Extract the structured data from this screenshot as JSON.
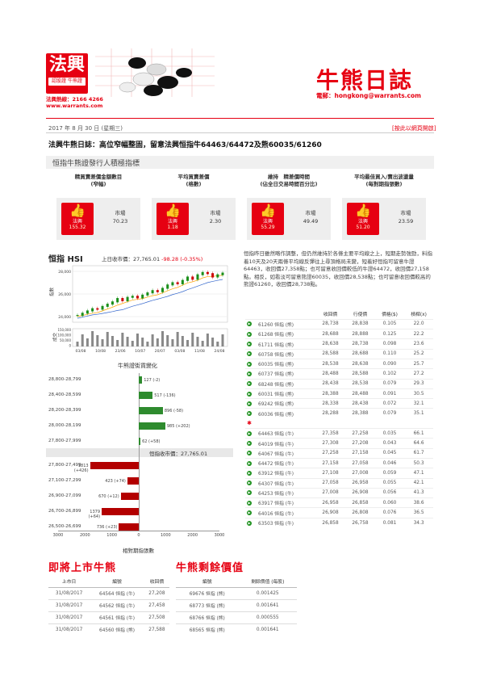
{
  "brand": {
    "logo_big": "法興",
    "logo_small": "認股證 牛熊證",
    "hotline": "法興熱線：2166 4266",
    "website": "www.warrants.com"
  },
  "header": {
    "title": "牛熊日誌",
    "email": "電郵：hongkong@warrants.com"
  },
  "date": "2017 年 8 月 30 日 (星期三)",
  "web_link": "[按此以網頁開啟]",
  "headline": "法興牛熊日誌：高位窄幅整固，留意法興恒指牛64463/64472及熊60035/61260",
  "section_title": "恒指牛熊證發行人積極指標",
  "cards": [
    {
      "title1": "精買賣差價金額數目",
      "title2": "(窄幅)",
      "issuer_label": "法興",
      "issuer_value": "155.32",
      "market_label": "市場",
      "market_value": "70.23"
    },
    {
      "title1": "平均買賣差價",
      "title2": "(格數)",
      "issuer_label": "法興",
      "issuer_value": "1.18",
      "market_label": "市場",
      "market_value": "2.30"
    },
    {
      "title1": "維持　精差價時間",
      "title2": "(佔全日交易時間百分比)",
      "issuer_label": "法興",
      "issuer_value": "55.29",
      "market_label": "市場",
      "market_value": "49.49"
    },
    {
      "title1": "平均最佳買入/賣出波盪量",
      "title2": "(每對期指張數)",
      "issuer_label": "法興",
      "issuer_value": "51.20",
      "market_label": "市場",
      "market_value": "23.59"
    }
  ],
  "hsi": {
    "label": "恒指 HSI",
    "close_text": "上日收市價：27,765.01",
    "change": "-98.28 (-0.35%)"
  },
  "commentary": "恒指昨日雖然略作調整，但仍然維持於各條主要平均線之上，短期走勢強勁，料指着10天及20天兩條平均線反彈往上尋頂格局未變，短着好恒指可留意牛證64463，收回價27,358點；也可留意收回價較低的牛證64472，收回價27,158點。相反，如看淡可留意熊證60035，收回價28,538點；也可留意收回價較高的熊證61260，收回價28,738點。",
  "cbbc_table": {
    "headers": [
      "",
      "",
      "收回價",
      "行使價",
      "價格($)",
      "槓桿(x)"
    ],
    "bull_icon": "star-icon",
    "bear_rows": [
      [
        "61260 恒指 (熊)",
        "28,738",
        "28,838",
        "0.105",
        "22.0"
      ],
      [
        "61268 恒指 (熊)",
        "28,688",
        "28,888",
        "0.125",
        "22.2"
      ],
      [
        "61711 恒指 (熊)",
        "28,638",
        "28,738",
        "0.098",
        "23.6"
      ],
      [
        "60758 恒指 (熊)",
        "28,588",
        "28,688",
        "0.110",
        "25.2"
      ],
      [
        "60035 恒指 (熊)",
        "28,538",
        "28,638",
        "0.090",
        "25.7"
      ],
      [
        "60737 恒指 (熊)",
        "28,488",
        "28,588",
        "0.102",
        "27.2"
      ],
      [
        "68248 恒指 (熊)",
        "28,438",
        "28,538",
        "0.079",
        "29.3"
      ],
      [
        "60031 恒指 (熊)",
        "28,388",
        "28,488",
        "0.091",
        "30.5"
      ],
      [
        "69242 恒指 (熊)",
        "28,338",
        "28,438",
        "0.072",
        "32.1"
      ],
      [
        "60036 恒指 (熊)",
        "28,288",
        "28,388",
        "0.079",
        "35.1"
      ]
    ],
    "bull_rows": [
      [
        "64463 恒指 (牛)",
        "27,358",
        "27,258",
        "0.035",
        "66.1"
      ],
      [
        "64019 恒指 (牛)",
        "27,308",
        "27,208",
        "0.043",
        "64.6"
      ],
      [
        "64067 恒指 (牛)",
        "27,258",
        "27,158",
        "0.045",
        "61.7"
      ],
      [
        "64472 恒指 (牛)",
        "27,158",
        "27,058",
        "0.046",
        "50.3"
      ],
      [
        "63912 恒指 (牛)",
        "27,108",
        "27,008",
        "0.059",
        "47.1"
      ],
      [
        "64307 恒指 (牛)",
        "27,058",
        "26,958",
        "0.055",
        "42.1"
      ],
      [
        "64253 恒指 (牛)",
        "27,008",
        "26,908",
        "0.056",
        "41.3"
      ],
      [
        "63917 恒指 (牛)",
        "26,958",
        "26,858",
        "0.060",
        "38.6"
      ],
      [
        "64016 恒指 (牛)",
        "26,908",
        "26,808",
        "0.076",
        "36.5"
      ],
      [
        "63503 恒指 (牛)",
        "26,858",
        "26,758",
        "0.081",
        "34.3"
      ]
    ]
  },
  "chart_data": [
    {
      "type": "line",
      "ylabel": "指數",
      "vol_label": "成交",
      "x_ticks": [
        "03/08",
        "10/08",
        "23/06",
        "10/07",
        "20/07",
        "03/08",
        "11/08",
        "24/08"
      ],
      "y_ticks": [
        "28,000",
        "26,000",
        "24,000"
      ],
      "vol_ticks": [
        "150,000",
        "100,000",
        "50,000",
        "0"
      ],
      "ylim": [
        23500,
        28500
      ],
      "values": [
        24100,
        24300,
        24500,
        24700,
        24650,
        24900,
        25100,
        25300,
        25600,
        25400,
        25700,
        25800,
        25650,
        25900,
        26100,
        26300,
        26200,
        26500,
        26800,
        27000,
        26900,
        27200,
        27500,
        27300,
        27700,
        27900,
        27800,
        27500,
        27700,
        27850
      ]
    },
    {
      "type": "bar",
      "title": "牛熊證街貨變化",
      "mid_label": "恒指收市價：27,765.01",
      "xlabel": "相對期指張數",
      "x_ticks": [
        "3000",
        "2000",
        "1000",
        "0",
        "1000",
        "2000",
        "3000"
      ],
      "xlim": [
        -3000,
        3000
      ],
      "bear_categories": [
        "28,800-28,799",
        "28,400-28,599",
        "28,200-28,399",
        "28,000-28,199",
        "27,800-27,999"
      ],
      "bear_values": [
        127,
        517,
        896,
        985,
        62
      ],
      "bear_labels": [
        "127 (-2)",
        "517 (-136)",
        "896 (-58)",
        "985 (+202)",
        "62 (+58)"
      ],
      "bull_categories": [
        "27,800-27,499",
        "27,100-27,299",
        "26,900-27,099",
        "26,700-26,899",
        "26,500-26,699"
      ],
      "bull_values": [
        1813,
        423,
        670,
        1379,
        736
      ],
      "bull_labels": [
        "1813 (+426)",
        "423 (+74)",
        "670 (+12)",
        "1379 (+64)",
        "736 (+23)"
      ]
    }
  ],
  "upcoming": {
    "title": "即將上市牛熊",
    "headers": [
      "上市日",
      "編號",
      "收回價"
    ],
    "rows": [
      [
        "31/08/2017",
        "64564 恒指 (牛)",
        "27,208"
      ],
      [
        "31/08/2017",
        "64562 恒指 (牛)",
        "27,458"
      ],
      [
        "31/08/2017",
        "64561 恒指 (牛)",
        "27,508"
      ],
      [
        "31/08/2017",
        "64560 恒指 (熊)",
        "27,588"
      ]
    ]
  },
  "residual": {
    "title": "牛熊剩餘價值",
    "headers": [
      "編號",
      "剩餘價值 (每股)"
    ],
    "rows": [
      [
        "69676 恒指 (熊)",
        "0.001425"
      ],
      [
        "68773 恒指 (熊)",
        "0.001641"
      ],
      [
        "68766 恒指 (熊)",
        "0.000555"
      ],
      [
        "68565 恒指 (熊)",
        "0.001641"
      ]
    ]
  }
}
